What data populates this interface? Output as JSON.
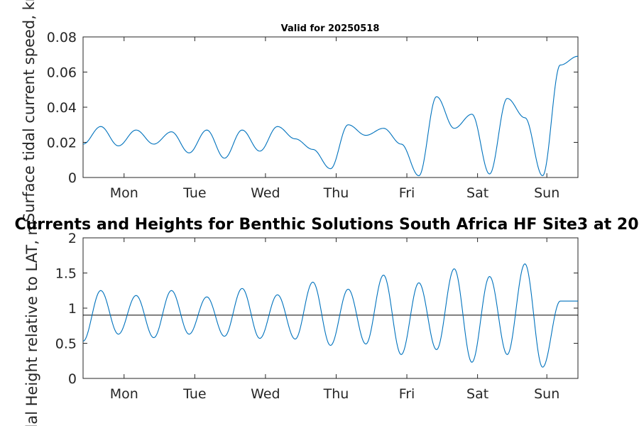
{
  "colors": {
    "series": "#0072BD",
    "reference_line": "#000000",
    "axis": "#262626"
  },
  "chart_data": [
    {
      "type": "line",
      "title": "Valid for 20250518",
      "ylabel": "Surface tidal current speed, kn",
      "ylim": [
        0,
        0.08
      ],
      "yticks": [
        "0",
        "0.02",
        "0.04",
        "0.06",
        "0.08"
      ],
      "xlim_days": [
        0,
        7
      ],
      "xticks": [
        "Mon",
        "Tue",
        "Wed",
        "Thu",
        "Fri",
        "Sat",
        "Sun"
      ],
      "grid": false,
      "x_days": [
        0.0,
        0.25,
        0.5,
        0.75,
        1.0,
        1.25,
        1.5,
        1.75,
        2.0,
        2.25,
        2.5,
        2.75,
        3.0,
        3.25,
        3.5,
        3.75,
        4.0,
        4.25,
        4.5,
        4.75,
        5.0,
        5.25,
        5.5,
        5.75,
        6.0,
        6.25,
        6.5,
        6.75,
        7.0
      ],
      "series": [
        {
          "values": [
            0.019,
            0.029,
            0.018,
            0.027,
            0.019,
            0.026,
            0.014,
            0.027,
            0.011,
            0.027,
            0.015,
            0.029,
            0.022,
            0.016,
            0.005,
            0.03,
            0.024,
            0.028,
            0.019,
            0.001,
            0.046,
            0.028,
            0.036,
            0.002,
            0.045,
            0.034,
            0.001,
            0.064,
            0.069
          ]
        }
      ]
    },
    {
      "type": "line",
      "title": "Currents and Heights for Benthic Solutions South Africa HF Site3 at 20",
      "ylabel": "Tidal Height relative to LAT, m",
      "ylim": [
        0,
        2
      ],
      "yticks": [
        "0",
        "0.5",
        "1",
        "1.5",
        "2"
      ],
      "xlim_days": [
        0,
        7
      ],
      "xticks": [
        "Mon",
        "Tue",
        "Wed",
        "Thu",
        "Fri",
        "Sat",
        "Sun"
      ],
      "grid": false,
      "reference_line_y": 0.9,
      "x_days": [
        0.0,
        0.25,
        0.5,
        0.75,
        1.0,
        1.25,
        1.5,
        1.75,
        2.0,
        2.25,
        2.5,
        2.75,
        3.0,
        3.25,
        3.5,
        3.75,
        4.0,
        4.25,
        4.5,
        4.75,
        5.0,
        5.25,
        5.5,
        5.75,
        6.0,
        6.25,
        6.5,
        6.75,
        7.0
      ],
      "series": [
        {
          "values": [
            0.53,
            1.25,
            0.63,
            1.18,
            0.58,
            1.25,
            0.63,
            1.16,
            0.6,
            1.28,
            0.57,
            1.19,
            0.56,
            1.37,
            0.47,
            1.27,
            0.49,
            1.47,
            0.34,
            1.36,
            0.41,
            1.56,
            0.23,
            1.45,
            0.34,
            1.63,
            0.16,
            1.1,
            1.1
          ]
        }
      ]
    }
  ]
}
